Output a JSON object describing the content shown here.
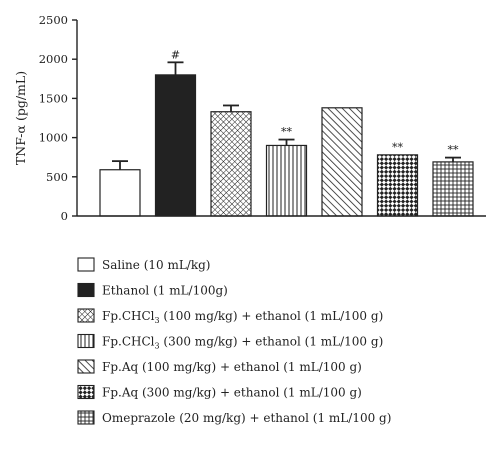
{
  "chart_data": {
    "type": "bar",
    "ylabel": "TNF-α (pg/mL)",
    "ylim": [
      0,
      2500
    ],
    "yticks": [
      0,
      500,
      1000,
      1500,
      2000,
      2500
    ],
    "grid": false,
    "legend_position": "bottom",
    "categories": [
      "Saline (10 mL/kg)",
      "Ethanol (1 mL/100g)",
      "Fp.CHCl3 (100 mg/kg) + ethanol (1 mL/100 g)",
      "Fp.CHCl3 (300 mg/kg) + ethanol (1 mL/100 g)",
      "Fp.Aq (100 mg/kg) + ethanol (1 mL/100 g)",
      "Fp.Aq (300 mg/kg) + ethanol (1 mL/100 g)",
      "Omeprazole (20 mg/kg) + ethanol (1 mL/100 g)"
    ],
    "values": [
      590,
      1800,
      1330,
      900,
      1380,
      780,
      690
    ],
    "errors": [
      110,
      160,
      80,
      75,
      0,
      0,
      55
    ],
    "annotations": [
      "",
      "#",
      "",
      "**",
      "",
      "**",
      "**"
    ],
    "patterns": [
      "empty",
      "solid",
      "crosshatch-diagonal",
      "vertical-lines",
      "diagonal-lines",
      "checker",
      "grid"
    ],
    "legend": [
      {
        "pre": "Saline (10 mL/kg)",
        "sub": "",
        "post": ""
      },
      {
        "pre": "Ethanol (1 mL/100g)",
        "sub": "",
        "post": ""
      },
      {
        "pre": "Fp.CHCl",
        "sub": "3",
        "post": " (100 mg/kg) + ethanol (1 mL/100 g)"
      },
      {
        "pre": "Fp.CHCl",
        "sub": "3",
        "post": " (300 mg/kg) + ethanol (1 mL/100 g)"
      },
      {
        "pre": "Fp.Aq (100 mg/kg) + ethanol (1 mL/100 g)",
        "sub": "",
        "post": ""
      },
      {
        "pre": "Fp.Aq (300 mg/kg) + ethanol (1 mL/100 g)",
        "sub": "",
        "post": ""
      },
      {
        "pre": "Omeprazole (20 mg/kg) + ethanol (1 mL/100 g)",
        "sub": "",
        "post": ""
      }
    ],
    "colors": {
      "ink": "#222222",
      "fill": "#ffffff"
    }
  }
}
